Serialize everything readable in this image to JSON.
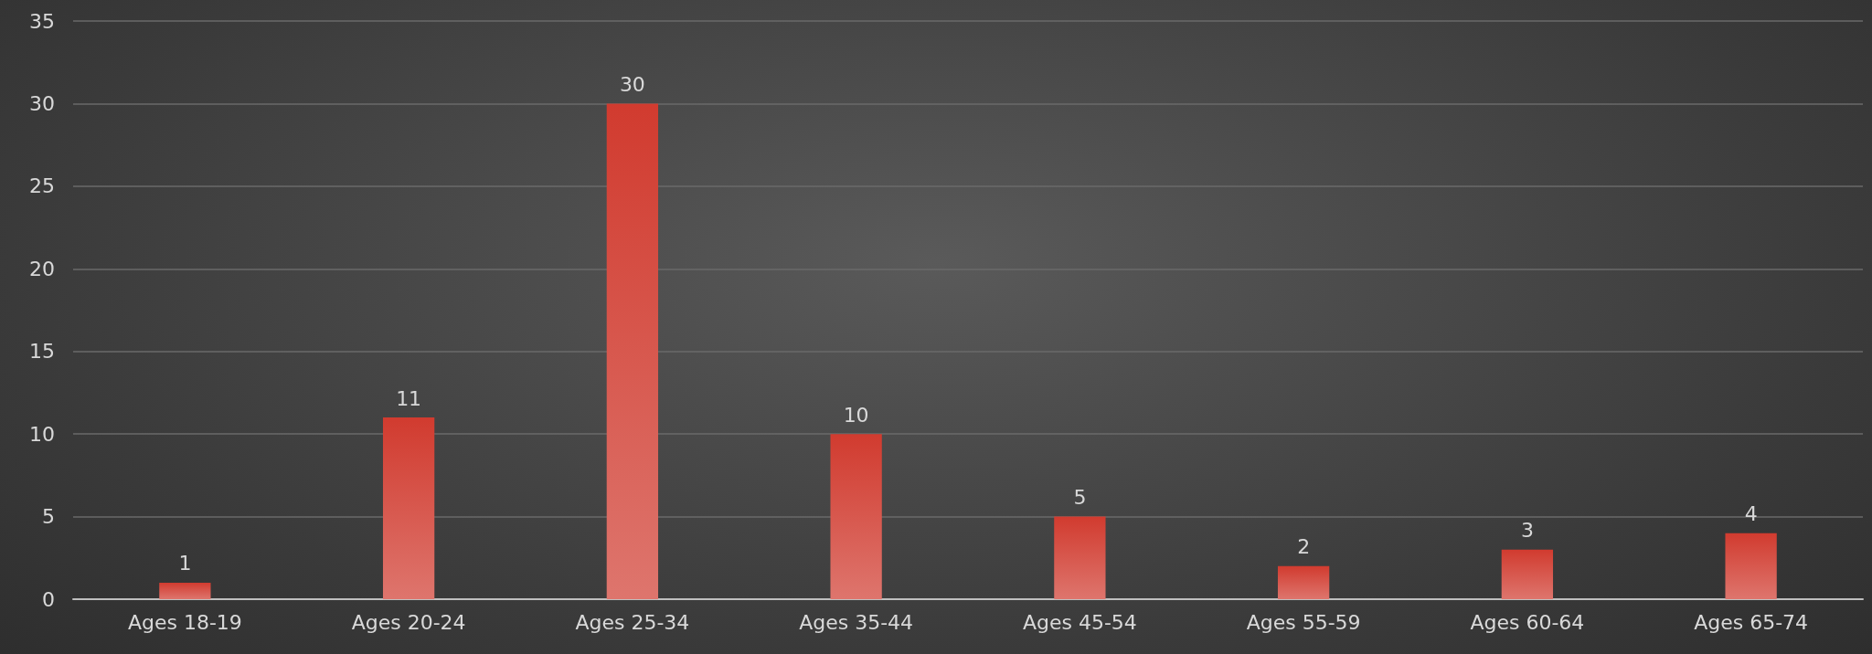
{
  "chart_data": {
    "type": "bar",
    "categories": [
      "Ages 18-19",
      "Ages 20-24",
      "Ages 25-34",
      "Ages 35-44",
      "Ages 45-54",
      "Ages 55-59",
      "Ages 60-64",
      "Ages 65-74"
    ],
    "values": [
      1,
      11,
      30,
      10,
      5,
      2,
      3,
      4
    ],
    "color": "#d13b2f",
    "ylim": [
      0,
      35
    ],
    "yticks": [
      0,
      5,
      10,
      15,
      20,
      25,
      30,
      35
    ],
    "grid": "y",
    "data_labels": true
  }
}
